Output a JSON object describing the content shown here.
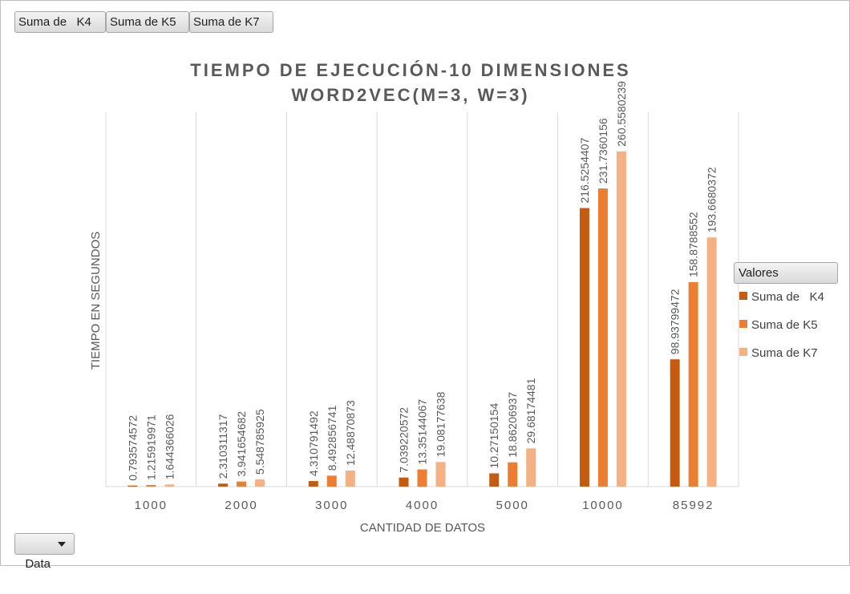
{
  "field_buttons": {
    "k4": "Suma de   K4",
    "k5": "Suma de K5",
    "k7": "Suma de K7",
    "data": "Data"
  },
  "legend": {
    "header": "Valores",
    "placement": "right"
  },
  "colors": {
    "k4": "#c55a11",
    "k5": "#ed7d31",
    "k7": "#f4b183",
    "grid": "#d9d9d9",
    "title": "#595959",
    "label": "#595959"
  },
  "chart_data": {
    "type": "bar",
    "title": "TIEMPO DE EJECUCIÓN-10 DIMENSIONES",
    "subtitle": "WORD2VEC(M=3, W=3)",
    "xlabel": "CANTIDAD DE DATOS",
    "ylabel": "TIEMPO EN SEGUNDOS",
    "categories": [
      "1000",
      "2000",
      "3000",
      "4000",
      "5000",
      "10000",
      "85992"
    ],
    "series": [
      {
        "name": "Suma de   K4",
        "values": [
          0.793574572,
          2.310311317,
          4.310791492,
          7.039220572,
          10.27150154,
          216.5254407,
          98.93799472
        ],
        "labels": [
          "0.793574572",
          "2.310311317",
          "4.310791492",
          "7.039220572",
          "10.27150154",
          "216.5254407",
          "98.93799472"
        ]
      },
      {
        "name": "Suma de K5",
        "values": [
          1.215919971,
          3.941654682,
          8.492856741,
          13.35144067,
          18.86206937,
          231.7360156,
          158.8788552
        ],
        "labels": [
          "1.215919971",
          "3.941654682",
          "8.492856741",
          "13.35144067",
          "18.86206937",
          "231.7360156",
          "158.8788552"
        ]
      },
      {
        "name": "Suma de K7",
        "values": [
          1.644366026,
          5.548785925,
          12.48870873,
          19.08177638,
          29.68174481,
          260.5580239,
          193.6680372
        ],
        "labels": [
          "1.644366026",
          "5.548785925",
          "12.48870873",
          "19.08177638",
          "29.68174481",
          "260.5580239",
          "193.6680372"
        ]
      }
    ],
    "ylim": [
      0,
      291
    ],
    "grid": "vertical",
    "y_axis_visible": false
  }
}
